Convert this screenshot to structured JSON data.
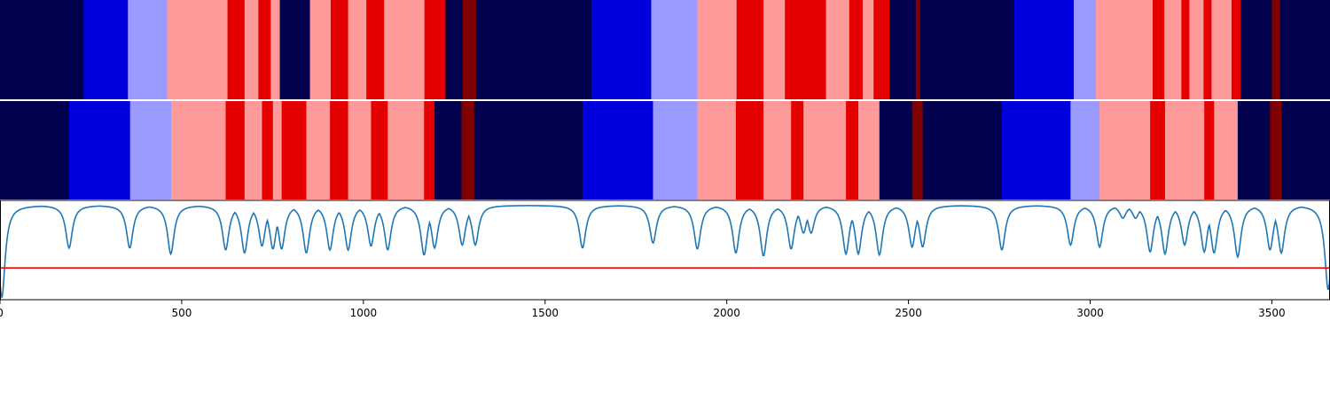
{
  "chart_data": [
    {
      "type": "heatmap",
      "name": "segmentation-track-1",
      "xlim": [
        0,
        3660
      ],
      "segment_colors": {
        "0": "#00004c",
        "1": "#0000dd",
        "2": "#9b9bff",
        "3": "#ff9a9a",
        "4": "#e50000",
        "5": "#800000"
      },
      "segments": [
        [
          0,
          230,
          0
        ],
        [
          230,
          352,
          1
        ],
        [
          352,
          460,
          2
        ],
        [
          460,
          626,
          3
        ],
        [
          626,
          673,
          4
        ],
        [
          673,
          711,
          3
        ],
        [
          711,
          745,
          4
        ],
        [
          745,
          770,
          3
        ],
        [
          770,
          853,
          0
        ],
        [
          853,
          910,
          3
        ],
        [
          910,
          958,
          4
        ],
        [
          958,
          1008,
          3
        ],
        [
          1008,
          1057,
          4
        ],
        [
          1057,
          1168,
          3
        ],
        [
          1168,
          1226,
          4
        ],
        [
          1226,
          1273,
          0
        ],
        [
          1273,
          1310,
          5
        ],
        [
          1310,
          1628,
          0
        ],
        [
          1628,
          1792,
          1
        ],
        [
          1792,
          1919,
          2
        ],
        [
          1919,
          2027,
          3
        ],
        [
          2027,
          2101,
          4
        ],
        [
          2101,
          2160,
          3
        ],
        [
          2160,
          2273,
          4
        ],
        [
          2273,
          2337,
          3
        ],
        [
          2337,
          2374,
          4
        ],
        [
          2374,
          2404,
          3
        ],
        [
          2404,
          2448,
          4
        ],
        [
          2448,
          2520,
          0
        ],
        [
          2520,
          2532,
          5
        ],
        [
          2532,
          2791,
          0
        ],
        [
          2791,
          2955,
          1
        ],
        [
          2955,
          3016,
          2
        ],
        [
          3016,
          3172,
          3
        ],
        [
          3172,
          3204,
          4
        ],
        [
          3204,
          3251,
          3
        ],
        [
          3251,
          3273,
          4
        ],
        [
          3273,
          3312,
          3
        ],
        [
          3312,
          3334,
          4
        ],
        [
          3334,
          3389,
          3
        ],
        [
          3389,
          3414,
          4
        ],
        [
          3414,
          3500,
          0
        ],
        [
          3500,
          3522,
          5
        ],
        [
          3522,
          3660,
          0
        ]
      ]
    },
    {
      "type": "heatmap",
      "name": "segmentation-track-2",
      "xlim": [
        0,
        3660
      ],
      "segments": [
        [
          0,
          190,
          0
        ],
        [
          190,
          358,
          1
        ],
        [
          358,
          471,
          2
        ],
        [
          471,
          621,
          3
        ],
        [
          621,
          673,
          4
        ],
        [
          673,
          721,
          3
        ],
        [
          721,
          751,
          4
        ],
        [
          751,
          775,
          3
        ],
        [
          775,
          843,
          4
        ],
        [
          843,
          908,
          3
        ],
        [
          908,
          958,
          4
        ],
        [
          958,
          1021,
          3
        ],
        [
          1021,
          1067,
          4
        ],
        [
          1067,
          1167,
          3
        ],
        [
          1167,
          1196,
          4
        ],
        [
          1196,
          1270,
          0
        ],
        [
          1270,
          1305,
          5
        ],
        [
          1305,
          1603,
          0
        ],
        [
          1603,
          1797,
          1
        ],
        [
          1797,
          1919,
          2
        ],
        [
          1919,
          2025,
          3
        ],
        [
          2025,
          2101,
          4
        ],
        [
          2101,
          2177,
          3
        ],
        [
          2177,
          2211,
          4
        ],
        [
          2211,
          2328,
          3
        ],
        [
          2328,
          2362,
          4
        ],
        [
          2362,
          2420,
          3
        ],
        [
          2420,
          2510,
          0
        ],
        [
          2510,
          2539,
          5
        ],
        [
          2539,
          2757,
          0
        ],
        [
          2757,
          2946,
          1
        ],
        [
          2946,
          3026,
          2
        ],
        [
          3026,
          3165,
          3
        ],
        [
          3165,
          3206,
          4
        ],
        [
          3206,
          3314,
          3
        ],
        [
          3314,
          3341,
          4
        ],
        [
          3341,
          3406,
          3
        ],
        [
          3406,
          3495,
          0
        ],
        [
          3495,
          3526,
          5
        ],
        [
          3526,
          3660,
          0
        ]
      ]
    },
    {
      "type": "line",
      "name": "probability-trace",
      "xlim": [
        0,
        3660
      ],
      "ylim": [
        0,
        1
      ],
      "threshold": 0.32,
      "line_color": "#1f77b4",
      "threshold_color": "#ff0000",
      "baseline": 0.95,
      "peak_half_width": 11,
      "dips": [
        [
          5,
          0.02
        ],
        [
          190,
          0.52
        ],
        [
          357,
          0.52
        ],
        [
          470,
          0.46
        ],
        [
          621,
          0.5
        ],
        [
          673,
          0.47
        ],
        [
          721,
          0.54
        ],
        [
          751,
          0.51
        ],
        [
          775,
          0.51
        ],
        [
          843,
          0.47
        ],
        [
          908,
          0.5
        ],
        [
          958,
          0.5
        ],
        [
          1021,
          0.54
        ],
        [
          1067,
          0.5
        ],
        [
          1167,
          0.45
        ],
        [
          1196,
          0.52
        ],
        [
          1272,
          0.55
        ],
        [
          1308,
          0.55
        ],
        [
          1603,
          0.52
        ],
        [
          1797,
          0.57
        ],
        [
          1919,
          0.51
        ],
        [
          2025,
          0.47
        ],
        [
          2101,
          0.44
        ],
        [
          2177,
          0.51
        ],
        [
          2211,
          0.67
        ],
        [
          2232,
          0.67
        ],
        [
          2328,
          0.46
        ],
        [
          2362,
          0.46
        ],
        [
          2420,
          0.45
        ],
        [
          2510,
          0.53
        ],
        [
          2539,
          0.53
        ],
        [
          2757,
          0.5
        ],
        [
          2946,
          0.55
        ],
        [
          3026,
          0.53
        ],
        [
          3090,
          0.82
        ],
        [
          3125,
          0.82
        ],
        [
          3165,
          0.48
        ],
        [
          3206,
          0.46
        ],
        [
          3260,
          0.55
        ],
        [
          3314,
          0.48
        ],
        [
          3341,
          0.47
        ],
        [
          3406,
          0.43
        ],
        [
          3495,
          0.5
        ],
        [
          3526,
          0.47
        ],
        [
          3655,
          0.1
        ]
      ]
    }
  ],
  "x_axis": {
    "ticks": [
      0,
      500,
      1000,
      1500,
      2000,
      2500,
      3000,
      3500
    ],
    "tick_labels": [
      "0",
      "500",
      "1000",
      "1500",
      "2000",
      "2500",
      "3000",
      "3500"
    ]
  }
}
